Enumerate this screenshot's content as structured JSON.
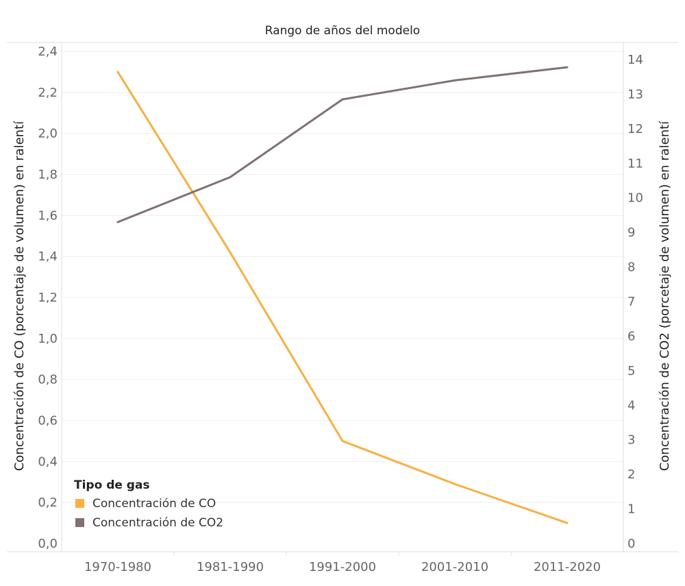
{
  "chart_data": {
    "type": "line",
    "title": "Rango de años del modelo",
    "categories": [
      "1970-1980",
      "1981-1990",
      "1991-2000",
      "2001-2010",
      "2011-2020"
    ],
    "ylabel_left": "Concentración de CO (porcentaje de volumen) en ralentí",
    "ylabel_right": "Concentración de CO2 (porcetaje de volumen) en ralentí",
    "ylim_left": [
      0,
      2.4
    ],
    "ylim_right": [
      0,
      14
    ],
    "yticks_left": [
      "0,0",
      "0,2",
      "0,4",
      "0,6",
      "0,8",
      "1,0",
      "1,2",
      "1,4",
      "1,6",
      "1,8",
      "2,0",
      "2,2",
      "2,4"
    ],
    "yticks_right": [
      "0",
      "1",
      "2",
      "3",
      "4",
      "5",
      "6",
      "7",
      "8",
      "9",
      "10",
      "11",
      "12",
      "13",
      "14"
    ],
    "grid": true,
    "legend": {
      "title": "Tipo de gas",
      "position": "bottom-left"
    },
    "series": [
      {
        "name": "Concentración de CO",
        "axis": "left",
        "color": "#F8B040",
        "values": [
          2.3,
          1.42,
          0.5,
          0.29,
          0.1
        ]
      },
      {
        "name": "Concentración de CO2",
        "axis": "right",
        "color": "#7F7270",
        "values": [
          9.3,
          10.6,
          12.85,
          13.4,
          13.78
        ]
      }
    ]
  }
}
